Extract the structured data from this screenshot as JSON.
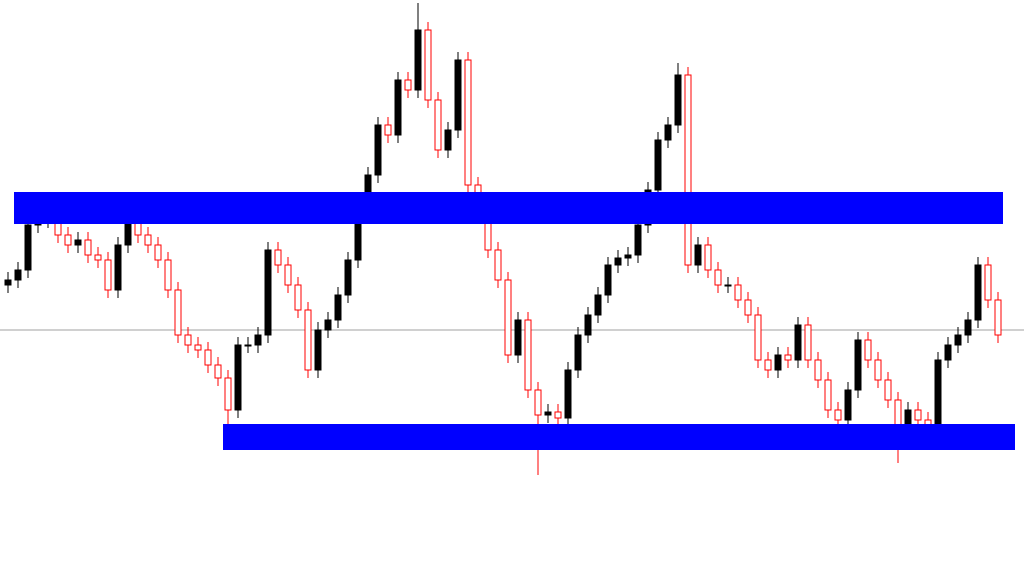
{
  "chart_data": {
    "type": "candlestick",
    "ylim": [
      0,
      563
    ],
    "up_color": "#000000",
    "down_color": "#ff0000",
    "zone_color": "#0000ff",
    "hline_color": "#a0a0a0",
    "hline": 233,
    "zones": [
      {
        "start": 0,
        "low": 339,
        "high": 371
      },
      {
        "start": 22,
        "low": 113,
        "high": 139
      }
    ],
    "open": [
      278,
      283,
      293,
      338,
      343,
      348,
      328,
      318,
      323,
      308,
      303,
      273,
      318,
      348,
      328,
      318,
      303,
      273,
      228,
      218,
      213,
      198,
      185,
      153,
      218,
      218,
      228,
      313,
      298,
      278,
      253,
      193,
      233,
      243,
      268,
      303,
      363,
      388,
      438,
      428,
      483,
      473,
      533,
      463,
      413,
      433,
      503,
      378,
      363,
      313,
      283,
      208,
      243,
      173,
      148,
      151,
      145,
      193,
      228,
      248,
      268,
      298,
      305,
      308,
      338,
      373,
      423,
      438,
      488,
      298,
      318,
      293,
      278,
      278,
      263,
      248,
      203,
      193,
      208,
      203,
      238,
      203,
      183,
      153,
      143,
      173,
      223,
      203,
      183,
      163,
      133,
      153,
      143,
      128,
      203,
      218,
      228,
      243,
      298,
      263
    ],
    "high": [
      291,
      301,
      346,
      351,
      356,
      356,
      336,
      331,
      331,
      316,
      311,
      326,
      363,
      356,
      336,
      326,
      311,
      281,
      236,
      226,
      221,
      206,
      193,
      226,
      226,
      236,
      321,
      321,
      306,
      286,
      261,
      241,
      251,
      276,
      311,
      371,
      396,
      446,
      446,
      491,
      491,
      560,
      541,
      471,
      441,
      511,
      511,
      386,
      371,
      321,
      291,
      251,
      251,
      181,
      159,
      159,
      201,
      236,
      256,
      276,
      306,
      313,
      316,
      346,
      381,
      431,
      446,
      500,
      496,
      326,
      326,
      301,
      286,
      286,
      271,
      256,
      211,
      216,
      216,
      246,
      246,
      211,
      191,
      161,
      181,
      231,
      231,
      211,
      191,
      171,
      161,
      161,
      151,
      211,
      226,
      236,
      251,
      306,
      306,
      271
    ],
    "low": [
      270,
      275,
      285,
      330,
      335,
      320,
      310,
      310,
      300,
      295,
      265,
      265,
      310,
      320,
      310,
      295,
      265,
      220,
      210,
      205,
      190,
      177,
      139,
      145,
      210,
      210,
      220,
      290,
      270,
      245,
      185,
      185,
      225,
      235,
      260,
      295,
      355,
      380,
      420,
      420,
      465,
      465,
      455,
      405,
      405,
      425,
      370,
      355,
      305,
      275,
      200,
      200,
      165,
      88,
      140,
      137,
      137,
      185,
      220,
      240,
      260,
      290,
      297,
      300,
      330,
      365,
      415,
      430,
      290,
      290,
      285,
      270,
      270,
      255,
      240,
      195,
      185,
      185,
      195,
      195,
      195,
      175,
      145,
      135,
      135,
      165,
      195,
      175,
      155,
      100,
      125,
      135,
      120,
      120,
      195,
      210,
      220,
      235,
      255,
      220
    ],
    "close": [
      283,
      293,
      338,
      343,
      348,
      328,
      318,
      323,
      308,
      303,
      273,
      318,
      348,
      328,
      318,
      303,
      273,
      228,
      218,
      213,
      198,
      185,
      153,
      218,
      218,
      228,
      313,
      298,
      278,
      253,
      193,
      233,
      243,
      268,
      303,
      363,
      388,
      438,
      428,
      483,
      473,
      533,
      463,
      413,
      433,
      503,
      378,
      363,
      313,
      283,
      208,
      243,
      173,
      148,
      151,
      145,
      193,
      228,
      248,
      268,
      298,
      305,
      308,
      338,
      373,
      423,
      438,
      488,
      298,
      318,
      293,
      278,
      278,
      263,
      248,
      203,
      193,
      208,
      203,
      238,
      203,
      183,
      153,
      143,
      173,
      223,
      203,
      183,
      163,
      133,
      153,
      143,
      128,
      203,
      218,
      228,
      243,
      298,
      263,
      228
    ]
  }
}
